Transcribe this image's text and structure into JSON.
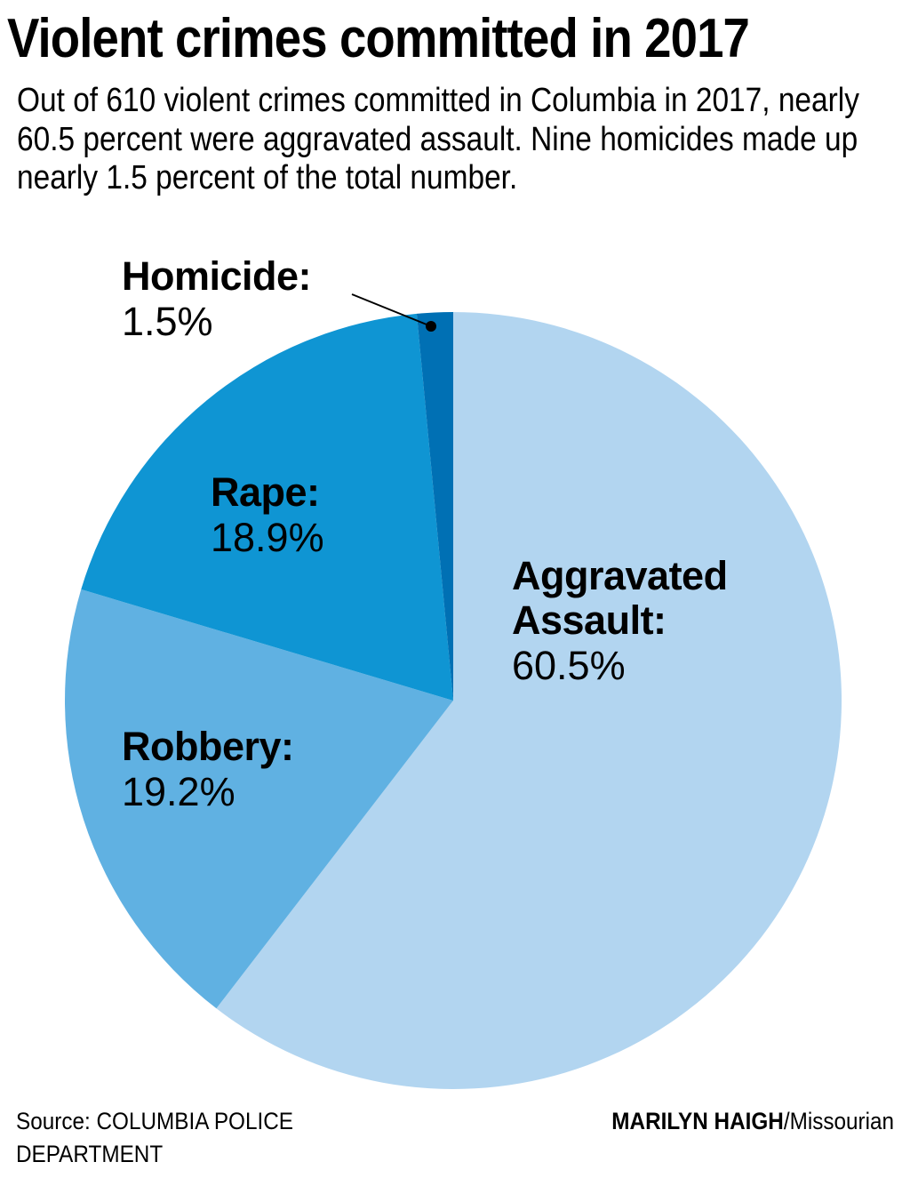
{
  "header": {
    "title": "Violent crimes committed in 2017",
    "subtitle": "Out of 610 violent crimes committed in Columbia in 2017, nearly 60.5 percent were aggravated assault. Nine homicides made up nearly 1.5 percent of the total number."
  },
  "labels": {
    "homicide": {
      "name": "Homicide:",
      "pct": "1.5%"
    },
    "rape": {
      "name": "Rape:",
      "pct": "18.9%"
    },
    "robbery": {
      "name": "Robbery:",
      "pct": "19.2%"
    },
    "assault": {
      "name_line1": "Aggravated",
      "name_line2": "Assault:",
      "pct": "60.5%"
    }
  },
  "footer": {
    "source": "Source: COLUMBIA POLICE DEPARTMENT",
    "author": "MARILYN HAIGH",
    "outlet": "/Missourian"
  },
  "colors": {
    "aggravated_assault": "#b2d5f0",
    "robbery": "#60b1e2",
    "rape": "#0f95d3",
    "homicide": "#0070b4"
  },
  "chart_data": {
    "type": "pie",
    "title": "Violent crimes committed in 2017",
    "subtitle": "Out of 610 violent crimes committed in Columbia in 2017, nearly 60.5 percent were aggravated assault. Nine homicides made up nearly 1.5 percent of the total number.",
    "total": 610,
    "categories": [
      "Aggravated Assault",
      "Robbery",
      "Rape",
      "Homicide"
    ],
    "values": [
      60.5,
      19.2,
      18.9,
      1.5
    ],
    "unit": "percent",
    "colors": [
      "#b2d5f0",
      "#60b1e2",
      "#0f95d3",
      "#0070b4"
    ],
    "start_angle": "12 o'clock, clockwise",
    "annotations": [
      "Homicide: 1.5% (callout with leader line)"
    ],
    "source": "Source: COLUMBIA POLICE DEPARTMENT",
    "credit": "MARILYN HAIGH/Missourian"
  }
}
